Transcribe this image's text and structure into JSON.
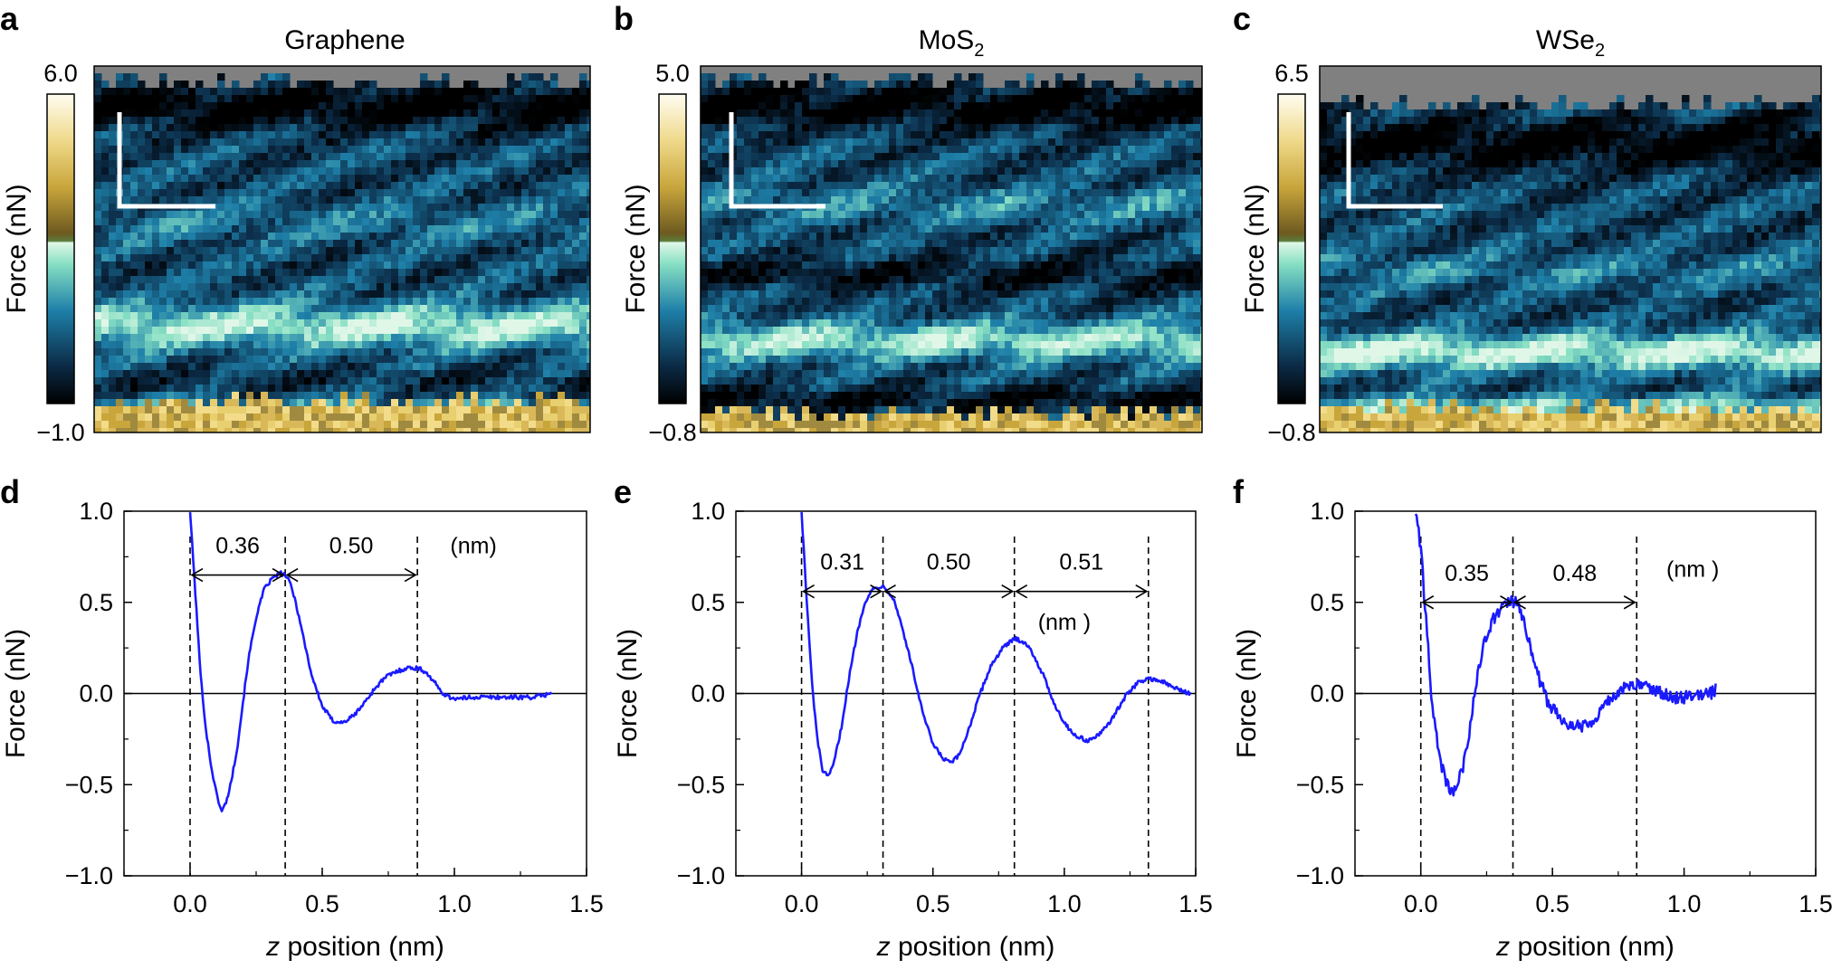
{
  "figure": {
    "panel_labels": [
      "a",
      "b",
      "c",
      "d",
      "e",
      "f"
    ]
  },
  "heatmaps": [
    {
      "label": "a",
      "title": "Graphene",
      "title_main": "Graphene",
      "title_sub": "",
      "cbar_max": "6.0",
      "cbar_min": "−1.0",
      "cbar_label": "Force (nN)"
    },
    {
      "label": "b",
      "title": "MoS2",
      "title_main": "MoS",
      "title_sub": "2",
      "cbar_max": "5.0",
      "cbar_min": "−0.8",
      "cbar_label": "Force (nN)"
    },
    {
      "label": "c",
      "title": "WSe2",
      "title_main": "WSe",
      "title_sub": "2",
      "cbar_max": "6.5",
      "cbar_min": "−0.8",
      "cbar_label": "Force (nN)"
    }
  ],
  "colors": {
    "curve": "#1a1aff",
    "grey_background": "#808080"
  },
  "chart_data": [
    {
      "type": "line",
      "label": "d",
      "material": "Graphene",
      "xlabel_italic": "z",
      "xlabel_rest": " position (nm)",
      "ylabel": "Force (nN)",
      "xlim": [
        -0.25,
        1.5
      ],
      "ylim": [
        -1.0,
        1.0
      ],
      "x_ticks": [
        0.0,
        0.5,
        1.0,
        1.5
      ],
      "x_tick_labels": [
        "0.0",
        "0.5",
        "1.0",
        "1.5"
      ],
      "y_ticks": [
        -1.0,
        -0.5,
        0.0,
        0.5,
        1.0
      ],
      "y_tick_labels": [
        "−1.0",
        "−0.5",
        "0.0",
        "0.5",
        "1.0"
      ],
      "series": [
        {
          "name": "Graphene force curve",
          "noise": 0.012,
          "x": [
            0.0,
            0.02,
            0.04,
            0.06,
            0.08,
            0.1,
            0.12,
            0.14,
            0.16,
            0.18,
            0.2,
            0.22,
            0.25,
            0.28,
            0.31,
            0.34,
            0.36,
            0.38,
            0.4,
            0.43,
            0.46,
            0.5,
            0.54,
            0.58,
            0.62,
            0.66,
            0.7,
            0.74,
            0.78,
            0.82,
            0.86,
            0.89,
            0.92,
            0.95,
            0.98,
            1.02,
            1.06,
            1.1,
            1.15,
            1.2,
            1.25,
            1.3,
            1.34,
            1.37
          ],
          "y": [
            1.0,
            0.55,
            0.1,
            -0.2,
            -0.4,
            -0.55,
            -0.65,
            -0.58,
            -0.45,
            -0.28,
            -0.05,
            0.18,
            0.42,
            0.57,
            0.63,
            0.66,
            0.65,
            0.6,
            0.5,
            0.3,
            0.1,
            -0.07,
            -0.15,
            -0.16,
            -0.12,
            -0.05,
            0.03,
            0.09,
            0.12,
            0.14,
            0.14,
            0.12,
            0.07,
            0.01,
            -0.02,
            -0.03,
            -0.02,
            -0.02,
            -0.02,
            -0.02,
            -0.02,
            -0.02,
            -0.01,
            0.01
          ]
        }
      ],
      "vlines": [
        0.0,
        0.36,
        0.86
      ],
      "annotations": [
        {
          "text": "0.36",
          "from": 0.0,
          "to": 0.36,
          "y": 0.65
        },
        {
          "text": "0.50",
          "from": 0.36,
          "to": 0.86,
          "y": 0.65
        }
      ],
      "unit_note": "(nm)"
    },
    {
      "type": "line",
      "label": "e",
      "material": "MoS2",
      "xlabel_italic": "z",
      "xlabel_rest": " position (nm)",
      "ylabel": "Force (nN)",
      "xlim": [
        -0.25,
        1.5
      ],
      "ylim": [
        -1.0,
        1.0
      ],
      "x_ticks": [
        0.0,
        0.5,
        1.0,
        1.5
      ],
      "x_tick_labels": [
        "0.0",
        "0.5",
        "1.0",
        "1.5"
      ],
      "y_ticks": [
        -1.0,
        -0.5,
        0.0,
        0.5,
        1.0
      ],
      "y_tick_labels": [
        "−1.0",
        "−0.5",
        "0.0",
        "0.5",
        "1.0"
      ],
      "series": [
        {
          "name": "MoS2 force curve",
          "noise": 0.012,
          "x": [
            0.0,
            0.02,
            0.04,
            0.06,
            0.08,
            0.1,
            0.12,
            0.15,
            0.18,
            0.21,
            0.24,
            0.27,
            0.3,
            0.32,
            0.35,
            0.38,
            0.42,
            0.46,
            0.5,
            0.54,
            0.57,
            0.6,
            0.64,
            0.68,
            0.72,
            0.76,
            0.8,
            0.82,
            0.85,
            0.88,
            0.92,
            0.96,
            1.0,
            1.04,
            1.09,
            1.14,
            1.19,
            1.24,
            1.28,
            1.32,
            1.34,
            1.38,
            1.42,
            1.46,
            1.48
          ],
          "y": [
            1.0,
            0.5,
            0.05,
            -0.25,
            -0.42,
            -0.46,
            -0.4,
            -0.2,
            0.08,
            0.32,
            0.5,
            0.57,
            0.59,
            0.58,
            0.52,
            0.38,
            0.15,
            -0.1,
            -0.28,
            -0.36,
            -0.38,
            -0.34,
            -0.18,
            0.0,
            0.15,
            0.24,
            0.29,
            0.3,
            0.28,
            0.22,
            0.1,
            -0.05,
            -0.16,
            -0.23,
            -0.26,
            -0.22,
            -0.12,
            0.0,
            0.06,
            0.08,
            0.08,
            0.06,
            0.03,
            0.01,
            0.0
          ]
        }
      ],
      "vlines": [
        0.0,
        0.31,
        0.81,
        1.32
      ],
      "annotations": [
        {
          "text": "0.31",
          "from": 0.0,
          "to": 0.31,
          "y": 0.56
        },
        {
          "text": "0.50",
          "from": 0.31,
          "to": 0.81,
          "y": 0.56
        },
        {
          "text": "0.51",
          "from": 0.81,
          "to": 1.32,
          "y": 0.56
        }
      ],
      "unit_note": "(nm )"
    },
    {
      "type": "line",
      "label": "f",
      "material": "WSe2",
      "xlabel_italic": "z",
      "xlabel_rest": " position (nm)",
      "ylabel": "Force (nN)",
      "xlim": [
        -0.25,
        1.5
      ],
      "ylim": [
        -1.0,
        1.0
      ],
      "x_ticks": [
        0.0,
        0.5,
        1.0,
        1.5
      ],
      "x_tick_labels": [
        "0.0",
        "0.5",
        "1.0",
        "1.5"
      ],
      "y_ticks": [
        -1.0,
        -0.5,
        0.0,
        0.5,
        1.0
      ],
      "y_tick_labels": [
        "−1.0",
        "−0.5",
        "0.0",
        "0.5",
        "1.0"
      ],
      "series": [
        {
          "name": "WSe2 force curve",
          "noise": 0.035,
          "x": [
            -0.02,
            0.0,
            0.02,
            0.04,
            0.06,
            0.08,
            0.1,
            0.12,
            0.14,
            0.16,
            0.18,
            0.2,
            0.22,
            0.25,
            0.28,
            0.31,
            0.34,
            0.36,
            0.38,
            0.41,
            0.44,
            0.48,
            0.52,
            0.56,
            0.6,
            0.64,
            0.68,
            0.72,
            0.76,
            0.8,
            0.84,
            0.88,
            0.92,
            0.96,
            1.0,
            1.05,
            1.1,
            1.12
          ],
          "y": [
            1.0,
            0.8,
            0.4,
            0.0,
            -0.25,
            -0.4,
            -0.5,
            -0.54,
            -0.5,
            -0.4,
            -0.25,
            -0.05,
            0.15,
            0.32,
            0.42,
            0.47,
            0.5,
            0.5,
            0.44,
            0.3,
            0.12,
            -0.04,
            -0.12,
            -0.16,
            -0.18,
            -0.16,
            -0.1,
            -0.03,
            0.02,
            0.04,
            0.05,
            0.03,
            0.0,
            -0.02,
            -0.02,
            -0.01,
            0.0,
            0.02
          ]
        }
      ],
      "vlines": [
        0.0,
        0.35,
        0.82
      ],
      "annotations": [
        {
          "text": "0.35",
          "from": 0.0,
          "to": 0.35,
          "y": 0.5
        },
        {
          "text": "0.48",
          "from": 0.35,
          "to": 0.82,
          "y": 0.5
        }
      ],
      "unit_note": "(nm )"
    }
  ]
}
